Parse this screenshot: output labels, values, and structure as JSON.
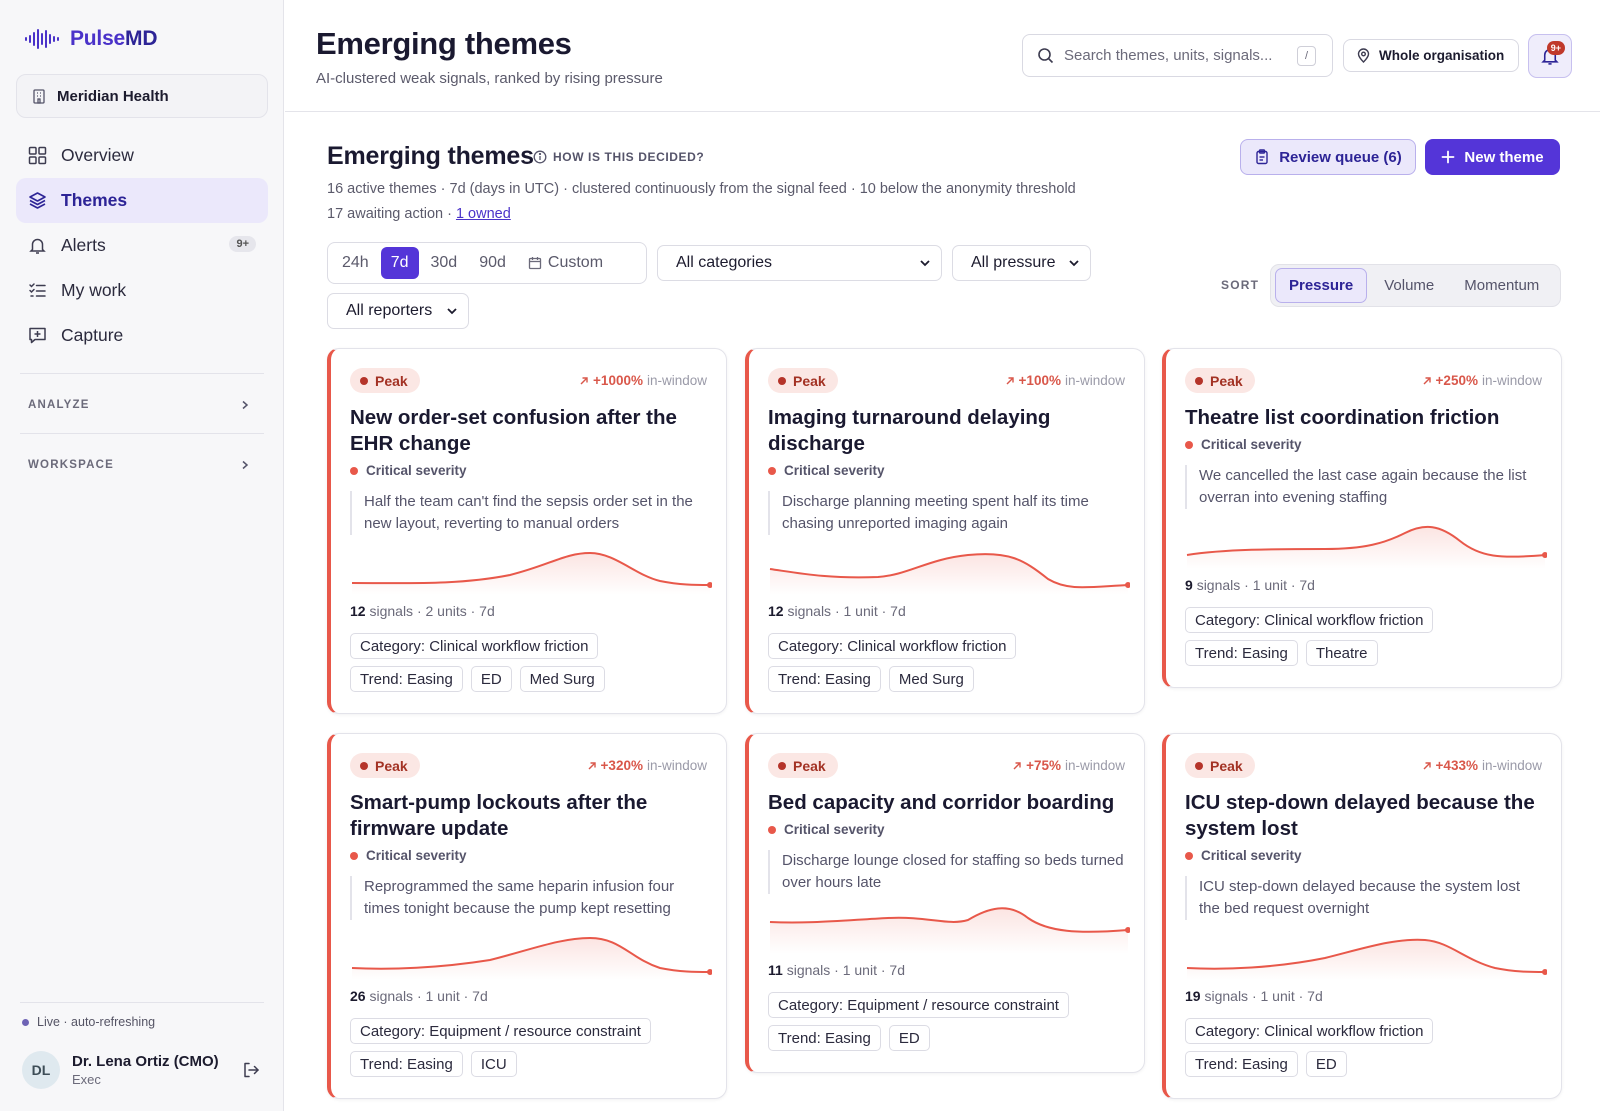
{
  "brand": {
    "name_a": "Pulse",
    "name_b": "MD"
  },
  "org": {
    "name": "Meridian Health"
  },
  "nav": [
    {
      "label": "Overview",
      "icon": "grid-icon"
    },
    {
      "label": "Themes",
      "icon": "layers-icon",
      "active": true
    },
    {
      "label": "Alerts",
      "icon": "bell-icon",
      "badge": "9+"
    },
    {
      "label": "My work",
      "icon": "checklist-icon"
    },
    {
      "label": "Capture",
      "icon": "message-plus-icon"
    }
  ],
  "sections": {
    "analyze": "ANALYZE",
    "workspace": "WORKSPACE"
  },
  "footer": {
    "live": "Live · auto-refreshing",
    "initials": "DL",
    "user_name": "Dr. Lena Ortiz (CMO)",
    "user_role": "Exec"
  },
  "header": {
    "title": "Emerging themes",
    "subtitle": "AI-clustered weak signals, ranked by rising pressure",
    "search_placeholder": "Search themes, units, signals...",
    "search_kbd": "/",
    "scope": "Whole organisation",
    "bell_badge": "9+"
  },
  "section": {
    "title": "Emerging themes",
    "how": "HOW IS THIS DECIDED?",
    "meta1": "16 active themes · 7d (days in UTC) · clustered continuously from the signal feed · 10 below the anonymity threshold",
    "meta2_prefix": "17 awaiting action · ",
    "meta2_link": "1 owned",
    "review_label": "Review queue (6)",
    "new_label": "New theme"
  },
  "filters": {
    "ranges": [
      "24h",
      "7d",
      "30d",
      "90d"
    ],
    "active_range": "7d",
    "custom": "Custom",
    "category": "All categories",
    "pressure": "All pressure",
    "reporters": "All reporters",
    "sort_label": "SORT",
    "sort_options": [
      "Pressure",
      "Volume",
      "Momentum"
    ],
    "sort_active": "Pressure"
  },
  "colors": {
    "accent": "#5435d8",
    "critical": "#e8584a",
    "peak_bg": "#fbe7e4"
  },
  "cards": [
    {
      "status": "Peak",
      "delta": "+1000%",
      "delta_suffix": "in-window",
      "title": "New order-set confusion after the EHR change",
      "severity": "Critical severity",
      "quote": "Half the team can't find the sepsis order set in the new layout, reverting to manual orders",
      "signals": "12",
      "stats_rest": "signals · 2 units · 7d",
      "category": "Category: Clinical workflow friction",
      "tags": [
        "Trend: Easing",
        "ED",
        "Med Surg"
      ]
    },
    {
      "status": "Peak",
      "delta": "+100%",
      "delta_suffix": "in-window",
      "title": "Imaging turnaround delaying discharge",
      "severity": "Critical severity",
      "quote": "Discharge planning meeting spent half its time chasing unreported imaging again",
      "signals": "12",
      "stats_rest": "signals · 1 unit · 7d",
      "category": "Category: Clinical workflow friction",
      "tags": [
        "Trend: Easing",
        "Med Surg"
      ]
    },
    {
      "status": "Peak",
      "delta": "+250%",
      "delta_suffix": "in-window",
      "title": "Theatre list coordination friction",
      "severity": "Critical severity",
      "quote": "We cancelled the last case again because the list overran into evening staffing",
      "signals": "9",
      "stats_rest": "signals · 1 unit · 7d",
      "category": "Category: Clinical workflow friction",
      "tags": [
        "Trend: Easing",
        "Theatre"
      ]
    },
    {
      "status": "Peak",
      "delta": "+320%",
      "delta_suffix": "in-window",
      "title": "Smart-pump lockouts after the firmware update",
      "severity": "Critical severity",
      "quote": "Reprogrammed the same heparin infusion four times tonight because the pump kept resetting",
      "signals": "26",
      "stats_rest": "signals · 1 unit · 7d",
      "category": "Category: Equipment / resource constraint",
      "tags": [
        "Trend: Easing",
        "ICU"
      ]
    },
    {
      "status": "Peak",
      "delta": "+75%",
      "delta_suffix": "in-window",
      "title": "Bed capacity and corridor boarding",
      "severity": "Critical severity",
      "quote": "Discharge lounge closed for staffing so beds turned over hours late",
      "signals": "11",
      "stats_rest": "signals · 1 unit · 7d",
      "category": "Category: Equipment / resource constraint",
      "tags": [
        "Trend: Easing",
        "ED"
      ]
    },
    {
      "status": "Peak",
      "delta": "+433%",
      "delta_suffix": "in-window",
      "title": "ICU step-down delayed because the system lost",
      "severity": "Critical severity",
      "quote": "ICU step-down delayed because the system lost the bed request overnight",
      "signals": "19",
      "stats_rest": "signals · 1 unit · 7d",
      "category": "Category: Clinical workflow friction",
      "tags": [
        "Trend: Easing",
        "ED"
      ]
    }
  ]
}
